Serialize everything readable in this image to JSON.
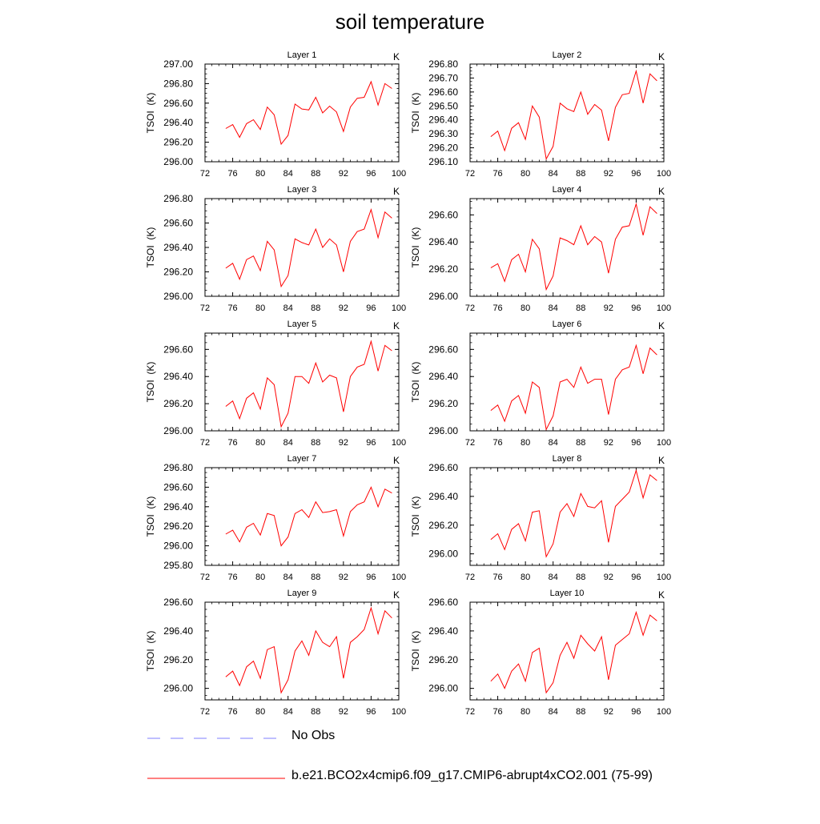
{
  "title": "soil temperature",
  "line_color": "#ff0000",
  "obs_color": "#9999ff",
  "legend": [
    {
      "label": "No Obs",
      "style": "dashed",
      "color": "#9999ff"
    },
    {
      "label": "b.e21.BCO2x4cmip6.f09_g17.CMIP6-abrupt4xCO2.001 (75-99)",
      "style": "solid",
      "color": "#ff0000"
    }
  ],
  "chart_data": [
    {
      "type": "line",
      "title": "Layer 1",
      "units": "K",
      "ylabel": "TSOI  (K)",
      "xlim": [
        72,
        100
      ],
      "xticks": [
        72,
        76,
        80,
        84,
        88,
        92,
        96,
        100
      ],
      "ylim": [
        296.0,
        297.0
      ],
      "yticks": [
        296.0,
        296.2,
        296.4,
        296.6,
        296.8,
        297.0
      ],
      "ydecimals": 2,
      "x": [
        75,
        76,
        77,
        78,
        79,
        80,
        81,
        82,
        83,
        84,
        85,
        86,
        87,
        88,
        89,
        90,
        91,
        92,
        93,
        94,
        95,
        96,
        97,
        98,
        99
      ],
      "series": [
        {
          "values": [
            296.34,
            296.38,
            296.25,
            296.39,
            296.43,
            296.33,
            296.56,
            296.48,
            296.18,
            296.27,
            296.59,
            296.54,
            296.53,
            296.66,
            296.5,
            296.57,
            296.51,
            296.31,
            296.56,
            296.65,
            296.66,
            296.82,
            296.58,
            296.8,
            296.75
          ]
        }
      ]
    },
    {
      "type": "line",
      "title": "Layer 2",
      "units": "K",
      "ylabel": "TSOI  (K)",
      "xlim": [
        72,
        100
      ],
      "xticks": [
        72,
        76,
        80,
        84,
        88,
        92,
        96,
        100
      ],
      "ylim": [
        296.1,
        296.8
      ],
      "yticks": [
        296.1,
        296.2,
        296.3,
        296.4,
        296.5,
        296.6,
        296.7,
        296.8
      ],
      "ydecimals": 2,
      "x": [
        75,
        76,
        77,
        78,
        79,
        80,
        81,
        82,
        83,
        84,
        85,
        86,
        87,
        88,
        89,
        90,
        91,
        92,
        93,
        94,
        95,
        96,
        97,
        98,
        99
      ],
      "series": [
        {
          "values": [
            296.28,
            296.32,
            296.18,
            296.34,
            296.38,
            296.26,
            296.5,
            296.42,
            296.12,
            296.21,
            296.52,
            296.48,
            296.46,
            296.6,
            296.44,
            296.51,
            296.47,
            296.25,
            296.49,
            296.58,
            296.59,
            296.75,
            296.52,
            296.73,
            296.68
          ]
        }
      ]
    },
    {
      "type": "line",
      "title": "Layer 3",
      "units": "K",
      "ylabel": "TSOI  (K)",
      "xlim": [
        72,
        100
      ],
      "xticks": [
        72,
        76,
        80,
        84,
        88,
        92,
        96,
        100
      ],
      "ylim": [
        296.0,
        296.8
      ],
      "yticks": [
        296.0,
        296.2,
        296.4,
        296.6,
        296.8
      ],
      "ydecimals": 2,
      "x": [
        75,
        76,
        77,
        78,
        79,
        80,
        81,
        82,
        83,
        84,
        85,
        86,
        87,
        88,
        89,
        90,
        91,
        92,
        93,
        94,
        95,
        96,
        97,
        98,
        99
      ],
      "series": [
        {
          "values": [
            296.23,
            296.27,
            296.14,
            296.3,
            296.33,
            296.21,
            296.45,
            296.38,
            296.08,
            296.17,
            296.47,
            296.44,
            296.42,
            296.55,
            296.4,
            296.47,
            296.42,
            296.2,
            296.45,
            296.53,
            296.55,
            296.71,
            296.48,
            296.69,
            296.64
          ]
        }
      ]
    },
    {
      "type": "line",
      "title": "Layer 4",
      "units": "K",
      "ylabel": "TSOI  (K)",
      "xlim": [
        72,
        100
      ],
      "xticks": [
        72,
        76,
        80,
        84,
        88,
        92,
        96,
        100
      ],
      "ylim": [
        296.0,
        296.72
      ],
      "yticks": [
        296.0,
        296.2,
        296.4,
        296.6
      ],
      "ydecimals": 2,
      "x": [
        75,
        76,
        77,
        78,
        79,
        80,
        81,
        82,
        83,
        84,
        85,
        86,
        87,
        88,
        89,
        90,
        91,
        92,
        93,
        94,
        95,
        96,
        97,
        98,
        99
      ],
      "series": [
        {
          "values": [
            296.21,
            296.24,
            296.11,
            296.27,
            296.31,
            296.18,
            296.42,
            296.35,
            296.05,
            296.15,
            296.43,
            296.41,
            296.38,
            296.52,
            296.38,
            296.44,
            296.4,
            296.17,
            296.42,
            296.51,
            296.52,
            296.68,
            296.45,
            296.66,
            296.61
          ]
        }
      ]
    },
    {
      "type": "line",
      "title": "Layer 5",
      "units": "K",
      "ylabel": "TSOI  (K)",
      "xlim": [
        72,
        100
      ],
      "xticks": [
        72,
        76,
        80,
        84,
        88,
        92,
        96,
        100
      ],
      "ylim": [
        296.0,
        296.72
      ],
      "yticks": [
        296.0,
        296.2,
        296.4,
        296.6
      ],
      "ydecimals": 2,
      "x": [
        75,
        76,
        77,
        78,
        79,
        80,
        81,
        82,
        83,
        84,
        85,
        86,
        87,
        88,
        89,
        90,
        91,
        92,
        93,
        94,
        95,
        96,
        97,
        98,
        99
      ],
      "series": [
        {
          "values": [
            296.18,
            296.22,
            296.09,
            296.24,
            296.28,
            296.16,
            296.39,
            296.34,
            296.03,
            296.13,
            296.4,
            296.4,
            296.35,
            296.5,
            296.36,
            296.41,
            296.39,
            296.14,
            296.4,
            296.47,
            296.49,
            296.66,
            296.44,
            296.63,
            296.59
          ]
        }
      ]
    },
    {
      "type": "line",
      "title": "Layer 6",
      "units": "K",
      "ylabel": "TSOI  (K)",
      "xlim": [
        72,
        100
      ],
      "xticks": [
        72,
        76,
        80,
        84,
        88,
        92,
        96,
        100
      ],
      "ylim": [
        296.0,
        296.72
      ],
      "yticks": [
        296.0,
        296.2,
        296.4,
        296.6
      ],
      "ydecimals": 2,
      "x": [
        75,
        76,
        77,
        78,
        79,
        80,
        81,
        82,
        83,
        84,
        85,
        86,
        87,
        88,
        89,
        90,
        91,
        92,
        93,
        94,
        95,
        96,
        97,
        98,
        99
      ],
      "series": [
        {
          "values": [
            296.15,
            296.19,
            296.07,
            296.22,
            296.26,
            296.13,
            296.36,
            296.32,
            296.01,
            296.11,
            296.36,
            296.38,
            296.32,
            296.47,
            296.35,
            296.38,
            296.38,
            296.12,
            296.38,
            296.45,
            296.47,
            296.63,
            296.42,
            296.61,
            296.56
          ]
        }
      ]
    },
    {
      "type": "line",
      "title": "Layer 7",
      "units": "K",
      "ylabel": "TSOI  (K)",
      "xlim": [
        72,
        100
      ],
      "xticks": [
        72,
        76,
        80,
        84,
        88,
        92,
        96,
        100
      ],
      "ylim": [
        295.8,
        296.8
      ],
      "yticks": [
        295.8,
        296.0,
        296.2,
        296.4,
        296.6,
        296.8
      ],
      "ydecimals": 2,
      "x": [
        75,
        76,
        77,
        78,
        79,
        80,
        81,
        82,
        83,
        84,
        85,
        86,
        87,
        88,
        89,
        90,
        91,
        92,
        93,
        94,
        95,
        96,
        97,
        98,
        99
      ],
      "series": [
        {
          "values": [
            296.12,
            296.16,
            296.04,
            296.19,
            296.23,
            296.11,
            296.33,
            296.31,
            296.0,
            296.09,
            296.33,
            296.37,
            296.29,
            296.45,
            296.34,
            296.35,
            296.37,
            296.1,
            296.35,
            296.42,
            296.45,
            296.6,
            296.4,
            296.58,
            296.54
          ]
        }
      ]
    },
    {
      "type": "line",
      "title": "Layer 8",
      "units": "K",
      "ylabel": "TSOI  (K)",
      "xlim": [
        72,
        100
      ],
      "xticks": [
        72,
        76,
        80,
        84,
        88,
        92,
        96,
        100
      ],
      "ylim": [
        295.92,
        296.6
      ],
      "yticks": [
        296.0,
        296.2,
        296.4,
        296.6
      ],
      "ydecimals": 2,
      "x": [
        75,
        76,
        77,
        78,
        79,
        80,
        81,
        82,
        83,
        84,
        85,
        86,
        87,
        88,
        89,
        90,
        91,
        92,
        93,
        94,
        95,
        96,
        97,
        98,
        99
      ],
      "series": [
        {
          "values": [
            296.1,
            296.14,
            296.03,
            296.17,
            296.21,
            296.09,
            296.29,
            296.3,
            295.98,
            296.07,
            296.29,
            296.35,
            296.26,
            296.42,
            296.33,
            296.32,
            296.37,
            296.08,
            296.33,
            296.38,
            296.43,
            296.58,
            296.39,
            296.55,
            296.51
          ]
        }
      ]
    },
    {
      "type": "line",
      "title": "Layer 9",
      "units": "K",
      "ylabel": "TSOI  (K)",
      "xlim": [
        72,
        100
      ],
      "xticks": [
        72,
        76,
        80,
        84,
        88,
        92,
        96,
        100
      ],
      "ylim": [
        295.92,
        296.6
      ],
      "yticks": [
        296.0,
        296.2,
        296.4,
        296.6
      ],
      "ydecimals": 2,
      "x": [
        75,
        76,
        77,
        78,
        79,
        80,
        81,
        82,
        83,
        84,
        85,
        86,
        87,
        88,
        89,
        90,
        91,
        92,
        93,
        94,
        95,
        96,
        97,
        98,
        99
      ],
      "series": [
        {
          "values": [
            296.08,
            296.12,
            296.02,
            296.15,
            296.19,
            296.07,
            296.27,
            296.29,
            295.97,
            296.06,
            296.26,
            296.33,
            296.23,
            296.4,
            296.32,
            296.29,
            296.36,
            296.07,
            296.32,
            296.36,
            296.41,
            296.56,
            296.38,
            296.54,
            296.49
          ]
        }
      ]
    },
    {
      "type": "line",
      "title": "Layer 10",
      "units": "K",
      "ylabel": "TSOI  (K)",
      "xlim": [
        72,
        100
      ],
      "xticks": [
        72,
        76,
        80,
        84,
        88,
        92,
        96,
        100
      ],
      "ylim": [
        295.92,
        296.6
      ],
      "yticks": [
        296.0,
        296.2,
        296.4,
        296.6
      ],
      "ydecimals": 2,
      "x": [
        75,
        76,
        77,
        78,
        79,
        80,
        81,
        82,
        83,
        84,
        85,
        86,
        87,
        88,
        89,
        90,
        91,
        92,
        93,
        94,
        95,
        96,
        97,
        98,
        99
      ],
      "series": [
        {
          "values": [
            296.05,
            296.1,
            296.0,
            296.12,
            296.17,
            296.05,
            296.25,
            296.28,
            295.97,
            296.04,
            296.23,
            296.32,
            296.21,
            296.37,
            296.31,
            296.26,
            296.36,
            296.06,
            296.3,
            296.34,
            296.38,
            296.53,
            296.37,
            296.51,
            296.47
          ]
        }
      ]
    }
  ]
}
